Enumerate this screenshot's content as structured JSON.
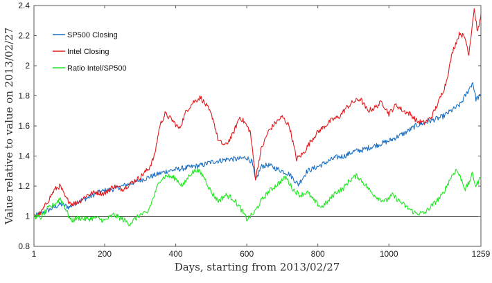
{
  "chart_data": {
    "type": "line",
    "title": "",
    "xlabel": "Days, starting from 2013/02/27",
    "ylabel": "Value relative to value on 2013/02/27",
    "xlim": [
      1,
      1259
    ],
    "ylim": [
      0.8,
      2.4
    ],
    "xticks": [
      1,
      200,
      400,
      600,
      800,
      1000,
      1259
    ],
    "yticks": [
      0.8,
      1,
      1.2,
      1.4,
      1.6,
      1.8,
      2,
      2.2,
      2.4
    ],
    "xtick_labels": [
      "1",
      "200",
      "400",
      "600",
      "800",
      "1000",
      "1259"
    ],
    "ytick_labels": [
      "0.8",
      "1",
      "1.2",
      "1.4",
      "1.6",
      "1.8",
      "2",
      "2.2",
      "2.4"
    ],
    "grid": false,
    "legend_position": "top-left",
    "reference_line": {
      "y": 1,
      "color": "#222222"
    },
    "series": [
      {
        "name": "SP500 Closing",
        "color": "#1a6fc4",
        "points": [
          [
            1,
            1.0
          ],
          [
            25,
            1.02
          ],
          [
            50,
            1.05
          ],
          [
            75,
            1.08
          ],
          [
            100,
            1.06
          ],
          [
            125,
            1.1
          ],
          [
            150,
            1.12
          ],
          [
            175,
            1.15
          ],
          [
            200,
            1.17
          ],
          [
            225,
            1.18
          ],
          [
            250,
            1.2
          ],
          [
            275,
            1.22
          ],
          [
            300,
            1.24
          ],
          [
            325,
            1.26
          ],
          [
            350,
            1.28
          ],
          [
            375,
            1.3
          ],
          [
            400,
            1.31
          ],
          [
            425,
            1.32
          ],
          [
            450,
            1.33
          ],
          [
            475,
            1.34
          ],
          [
            500,
            1.36
          ],
          [
            525,
            1.37
          ],
          [
            550,
            1.38
          ],
          [
            575,
            1.38
          ],
          [
            600,
            1.39
          ],
          [
            615,
            1.36
          ],
          [
            625,
            1.23
          ],
          [
            640,
            1.33
          ],
          [
            660,
            1.34
          ],
          [
            680,
            1.32
          ],
          [
            700,
            1.3
          ],
          [
            720,
            1.28
          ],
          [
            745,
            1.21
          ],
          [
            770,
            1.3
          ],
          [
            800,
            1.33
          ],
          [
            825,
            1.36
          ],
          [
            850,
            1.39
          ],
          [
            875,
            1.4
          ],
          [
            900,
            1.43
          ],
          [
            925,
            1.44
          ],
          [
            950,
            1.46
          ],
          [
            975,
            1.48
          ],
          [
            1000,
            1.5
          ],
          [
            1025,
            1.53
          ],
          [
            1050,
            1.56
          ],
          [
            1075,
            1.6
          ],
          [
            1100,
            1.62
          ],
          [
            1125,
            1.64
          ],
          [
            1150,
            1.66
          ],
          [
            1175,
            1.7
          ],
          [
            1200,
            1.74
          ],
          [
            1220,
            1.82
          ],
          [
            1236,
            1.89
          ],
          [
            1245,
            1.78
          ],
          [
            1259,
            1.8
          ]
        ]
      },
      {
        "name": "Intel Closing",
        "color": "#e41a1c",
        "points": [
          [
            1,
            1.0
          ],
          [
            20,
            1.02
          ],
          [
            40,
            1.1
          ],
          [
            60,
            1.18
          ],
          [
            75,
            1.2
          ],
          [
            90,
            1.12
          ],
          [
            110,
            1.08
          ],
          [
            130,
            1.1
          ],
          [
            150,
            1.14
          ],
          [
            175,
            1.16
          ],
          [
            200,
            1.15
          ],
          [
            225,
            1.2
          ],
          [
            250,
            1.18
          ],
          [
            275,
            1.22
          ],
          [
            300,
            1.26
          ],
          [
            325,
            1.32
          ],
          [
            340,
            1.4
          ],
          [
            355,
            1.6
          ],
          [
            370,
            1.68
          ],
          [
            390,
            1.64
          ],
          [
            410,
            1.58
          ],
          [
            430,
            1.7
          ],
          [
            450,
            1.76
          ],
          [
            470,
            1.79
          ],
          [
            490,
            1.72
          ],
          [
            505,
            1.65
          ],
          [
            520,
            1.5
          ],
          [
            540,
            1.47
          ],
          [
            560,
            1.54
          ],
          [
            580,
            1.66
          ],
          [
            595,
            1.62
          ],
          [
            610,
            1.56
          ],
          [
            625,
            1.25
          ],
          [
            640,
            1.44
          ],
          [
            660,
            1.56
          ],
          [
            680,
            1.62
          ],
          [
            700,
            1.66
          ],
          [
            720,
            1.6
          ],
          [
            740,
            1.38
          ],
          [
            760,
            1.42
          ],
          [
            780,
            1.5
          ],
          [
            800,
            1.56
          ],
          [
            820,
            1.6
          ],
          [
            840,
            1.64
          ],
          [
            860,
            1.66
          ],
          [
            880,
            1.72
          ],
          [
            900,
            1.76
          ],
          [
            920,
            1.78
          ],
          [
            940,
            1.7
          ],
          [
            960,
            1.72
          ],
          [
            980,
            1.76
          ],
          [
            1000,
            1.68
          ],
          [
            1020,
            1.74
          ],
          [
            1040,
            1.7
          ],
          [
            1060,
            1.68
          ],
          [
            1080,
            1.63
          ],
          [
            1100,
            1.62
          ],
          [
            1120,
            1.66
          ],
          [
            1140,
            1.76
          ],
          [
            1160,
            1.88
          ],
          [
            1180,
            2.1
          ],
          [
            1200,
            2.22
          ],
          [
            1215,
            2.18
          ],
          [
            1225,
            2.08
          ],
          [
            1240,
            2.38
          ],
          [
            1250,
            2.22
          ],
          [
            1259,
            2.34
          ]
        ]
      },
      {
        "name": "Ratio Intel/SP500",
        "color": "#1ee81e",
        "points": [
          [
            1,
            1.0
          ],
          [
            20,
            0.99
          ],
          [
            40,
            1.05
          ],
          [
            60,
            1.08
          ],
          [
            75,
            1.12
          ],
          [
            90,
            1.05
          ],
          [
            105,
            0.97
          ],
          [
            125,
            0.99
          ],
          [
            150,
            0.98
          ],
          [
            175,
            0.99
          ],
          [
            200,
            0.97
          ],
          [
            225,
            1.01
          ],
          [
            250,
            0.98
          ],
          [
            270,
            0.95
          ],
          [
            300,
            1.01
          ],
          [
            320,
            1.02
          ],
          [
            340,
            1.14
          ],
          [
            355,
            1.24
          ],
          [
            375,
            1.27
          ],
          [
            400,
            1.25
          ],
          [
            420,
            1.2
          ],
          [
            440,
            1.28
          ],
          [
            460,
            1.31
          ],
          [
            480,
            1.26
          ],
          [
            500,
            1.16
          ],
          [
            520,
            1.1
          ],
          [
            540,
            1.14
          ],
          [
            560,
            1.12
          ],
          [
            580,
            1.06
          ],
          [
            600,
            0.98
          ],
          [
            620,
            1.02
          ],
          [
            640,
            1.1
          ],
          [
            660,
            1.16
          ],
          [
            690,
            1.22
          ],
          [
            710,
            1.26
          ],
          [
            730,
            1.18
          ],
          [
            750,
            1.14
          ],
          [
            770,
            1.16
          ],
          [
            790,
            1.1
          ],
          [
            810,
            1.06
          ],
          [
            830,
            1.1
          ],
          [
            850,
            1.16
          ],
          [
            870,
            1.18
          ],
          [
            890,
            1.24
          ],
          [
            910,
            1.27
          ],
          [
            930,
            1.22
          ],
          [
            950,
            1.16
          ],
          [
            970,
            1.12
          ],
          [
            990,
            1.1
          ],
          [
            1010,
            1.14
          ],
          [
            1030,
            1.1
          ],
          [
            1050,
            1.06
          ],
          [
            1075,
            1.02
          ],
          [
            1100,
            1.02
          ],
          [
            1125,
            1.08
          ],
          [
            1150,
            1.14
          ],
          [
            1175,
            1.26
          ],
          [
            1190,
            1.31
          ],
          [
            1205,
            1.24
          ],
          [
            1215,
            1.18
          ],
          [
            1225,
            1.22
          ],
          [
            1235,
            1.28
          ],
          [
            1245,
            1.2
          ],
          [
            1259,
            1.26
          ]
        ]
      }
    ]
  }
}
